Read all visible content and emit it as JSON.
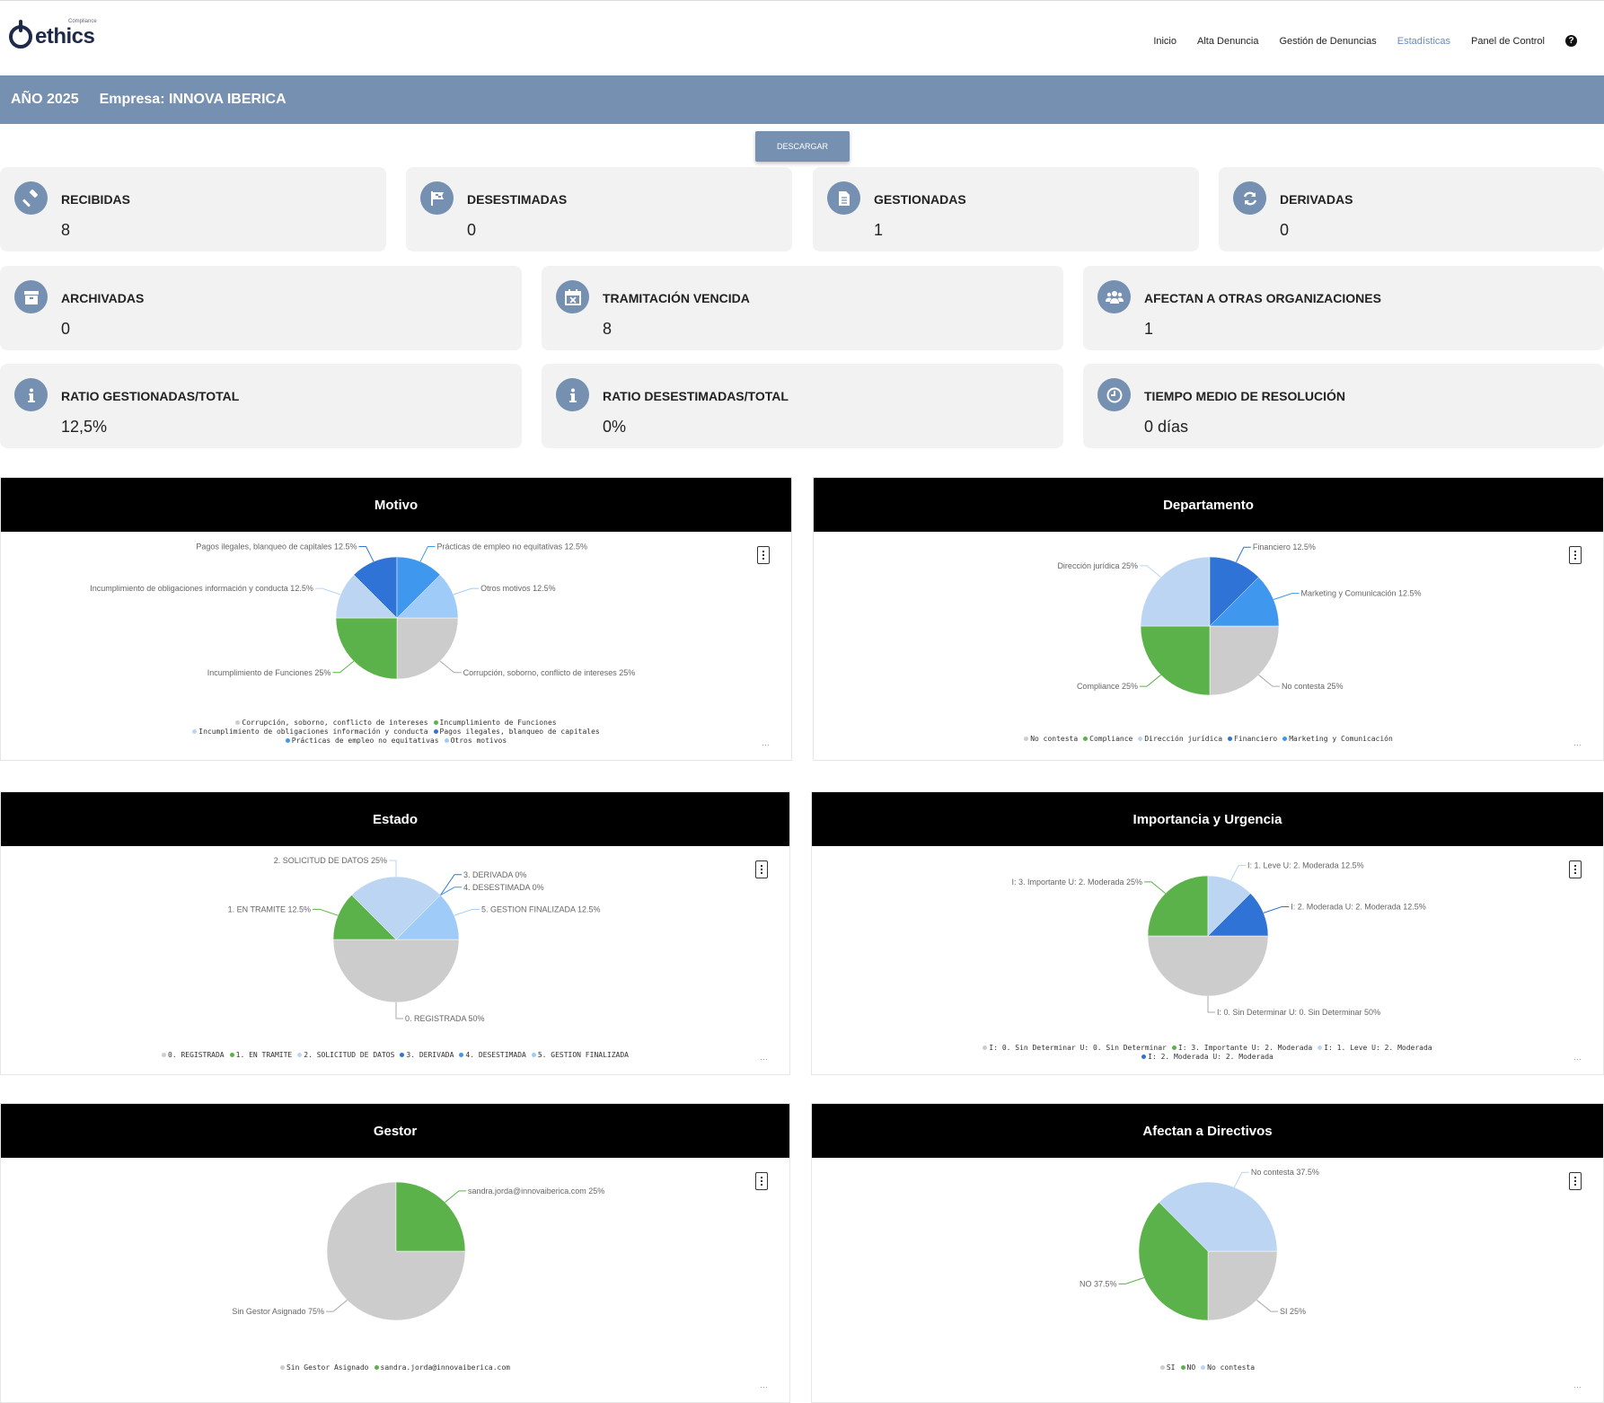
{
  "header": {
    "logo_text": "ethics",
    "logo_sub": "Compliance",
    "nav": [
      "Inicio",
      "Alta Denuncia",
      "Gestión de Denuncias",
      "Estadísticas",
      "Panel de Control"
    ],
    "active_nav": "Estadísticas",
    "help_icon": "?"
  },
  "banner": {
    "year": "AÑO 2025",
    "company": "Empresa: INNOVA IBERICA"
  },
  "download_label": "DESCARGAR",
  "stats": {
    "recibidas": {
      "label": "RECIBIDAS",
      "value": "8",
      "icon": "gavel-icon"
    },
    "desestimadas": {
      "label": "DESESTIMADAS",
      "value": "0",
      "icon": "flag-icon"
    },
    "gestionadas": {
      "label": "GESTIONADAS",
      "value": "1",
      "icon": "document-icon"
    },
    "derivadas": {
      "label": "DERIVADAS",
      "value": "0",
      "icon": "refresh-icon"
    },
    "archivadas": {
      "label": "ARCHIVADAS",
      "value": "0",
      "icon": "archive-icon"
    },
    "vencida": {
      "label": "TRAMITACIÓN VENCIDA",
      "value": "8",
      "icon": "calendar-x-icon"
    },
    "otras": {
      "label": "AFECTAN A OTRAS ORGANIZACIONES",
      "value": "1",
      "icon": "users-icon"
    },
    "ratio_gest": {
      "label": "RATIO GESTIONADAS/TOTAL",
      "value": "12,5%",
      "icon": "info-icon"
    },
    "ratio_des": {
      "label": "RATIO DESESTIMADAS/TOTAL",
      "value": "0%",
      "icon": "info-icon"
    },
    "tiempo": {
      "label": "TIEMPO MEDIO DE RESOLUCIÓN",
      "value": "0 días",
      "icon": "clock-icon"
    }
  },
  "colors": {
    "accent": "#7590b0",
    "gray": "#cccccc",
    "green": "#5bb14a",
    "lightblue": "#bcd5f2",
    "blue": "#3f97ee",
    "darkblue": "#2f73d6",
    "skyblue": "#9fcbf8"
  },
  "chart_data": [
    {
      "type": "pie",
      "title": "Motivo",
      "slices": [
        {
          "name": "Corrupción, soborno, conflicto de intereses",
          "value": 25,
          "label": "Corrupción, soborno, conflicto de intereses 25%",
          "color": "#cccccc"
        },
        {
          "name": "Incumplimiento de Funciones",
          "value": 25,
          "label": "Incumplimiento de Funciones 25%",
          "color": "#5bb14a"
        },
        {
          "name": "Incumplimiento de obligaciones información y conducta",
          "value": 12.5,
          "label": "Incumplimiento de obligaciones información y conducta 12.5%",
          "color": "#bcd5f2"
        },
        {
          "name": "Pagos ilegales, blanqueo de capitales",
          "value": 12.5,
          "label": "Pagos ilegales, blanqueo de capitales 12.5%",
          "color": "#2f73d6"
        },
        {
          "name": "Prácticas de empleo no equitativas",
          "value": 12.5,
          "label": "Prácticas de empleo no equitativas 12.5%",
          "color": "#3f97ee"
        },
        {
          "name": "Otros motivos",
          "value": 12.5,
          "label": "Otros motivos 12.5%",
          "color": "#9fcbf8"
        }
      ],
      "legend_rows": [
        [
          0,
          1
        ],
        [
          2,
          3
        ],
        [
          4,
          5
        ]
      ]
    },
    {
      "type": "pie",
      "title": "Departamento",
      "slices": [
        {
          "name": "No contesta",
          "value": 25,
          "label": "No contesta 25%",
          "color": "#cccccc"
        },
        {
          "name": "Compliance",
          "value": 25,
          "label": "Compliance 25%",
          "color": "#5bb14a"
        },
        {
          "name": "Dirección jurídica",
          "value": 25,
          "label": "Dirección jurídica 25%",
          "color": "#bcd5f2"
        },
        {
          "name": "Financiero",
          "value": 12.5,
          "label": "Financiero 12.5%",
          "color": "#2f73d6"
        },
        {
          "name": "Marketing y Comunicación",
          "value": 12.5,
          "label": "Marketing y Comunicación  12.5%",
          "color": "#3f97ee"
        }
      ],
      "legend_rows": [
        [
          0,
          1,
          2,
          3,
          4
        ]
      ]
    },
    {
      "type": "pie",
      "title": "Estado",
      "slices": [
        {
          "name": "0. REGISTRADA",
          "value": 50,
          "label": "0. REGISTRADA 50%",
          "color": "#cccccc"
        },
        {
          "name": "1. EN TRAMITE",
          "value": 12.5,
          "label": "1. EN TRAMITE 12.5%",
          "color": "#5bb14a"
        },
        {
          "name": "2. SOLICITUD DE DATOS",
          "value": 25,
          "label": "2. SOLICITUD DE DATOS 25%",
          "color": "#bcd5f2"
        },
        {
          "name": "3. DERIVADA",
          "value": 0,
          "label": "3. DERIVADA 0%",
          "color": "#2f73d6"
        },
        {
          "name": "4. DESESTIMADA",
          "value": 0,
          "label": "4. DESESTIMADA 0%",
          "color": "#3f97ee"
        },
        {
          "name": "5. GESTION FINALIZADA",
          "value": 12.5,
          "label": "5. GESTION FINALIZADA 12.5%",
          "color": "#9fcbf8"
        }
      ],
      "legend_rows": [
        [
          0,
          1,
          2,
          3,
          4,
          5
        ]
      ]
    },
    {
      "type": "pie",
      "title": "Importancia y Urgencia",
      "slices": [
        {
          "name": "I: 0. Sin Determinar U: 0. Sin Determinar",
          "value": 50,
          "label": "I: 0. Sin Determinar U: 0. Sin Determinar 50%",
          "color": "#cccccc"
        },
        {
          "name": "I: 3. Importante U: 2. Moderada",
          "value": 25,
          "label": "I: 3. Importante U: 2. Moderada 25%",
          "color": "#5bb14a"
        },
        {
          "name": "I: 1. Leve U: 2. Moderada",
          "value": 12.5,
          "label": "I: 1. Leve U: 2. Moderada 12.5%",
          "color": "#bcd5f2"
        },
        {
          "name": "I: 2. Moderada U: 2. Moderada",
          "value": 12.5,
          "label": "I: 2. Moderada U: 2. Moderada 12.5%",
          "color": "#2f73d6"
        }
      ],
      "legend_rows": [
        [
          0,
          1,
          2
        ],
        [
          3
        ]
      ]
    },
    {
      "type": "pie",
      "title": "Gestor",
      "slices": [
        {
          "name": "Sin Gestor Asignado",
          "value": 75,
          "label": "Sin Gestor Asignado 75%",
          "color": "#cccccc"
        },
        {
          "name": "sandra.jorda@innovaiberica.com",
          "value": 25,
          "label": "sandra.jorda@innovaiberica.com 25%",
          "color": "#5bb14a"
        }
      ],
      "legend_rows": [
        [
          0,
          1
        ]
      ]
    },
    {
      "type": "pie",
      "title": "Afectan a Directivos",
      "slices": [
        {
          "name": "SI",
          "value": 25,
          "label": "SI 25%",
          "color": "#cccccc"
        },
        {
          "name": "NO",
          "value": 37.5,
          "label": "NO 37.5%",
          "color": "#5bb14a"
        },
        {
          "name": "No contesta",
          "value": 37.5,
          "label": "No contesta 37.5%",
          "color": "#bcd5f2"
        }
      ],
      "legend_rows": [
        [
          0,
          1,
          2
        ]
      ]
    }
  ]
}
